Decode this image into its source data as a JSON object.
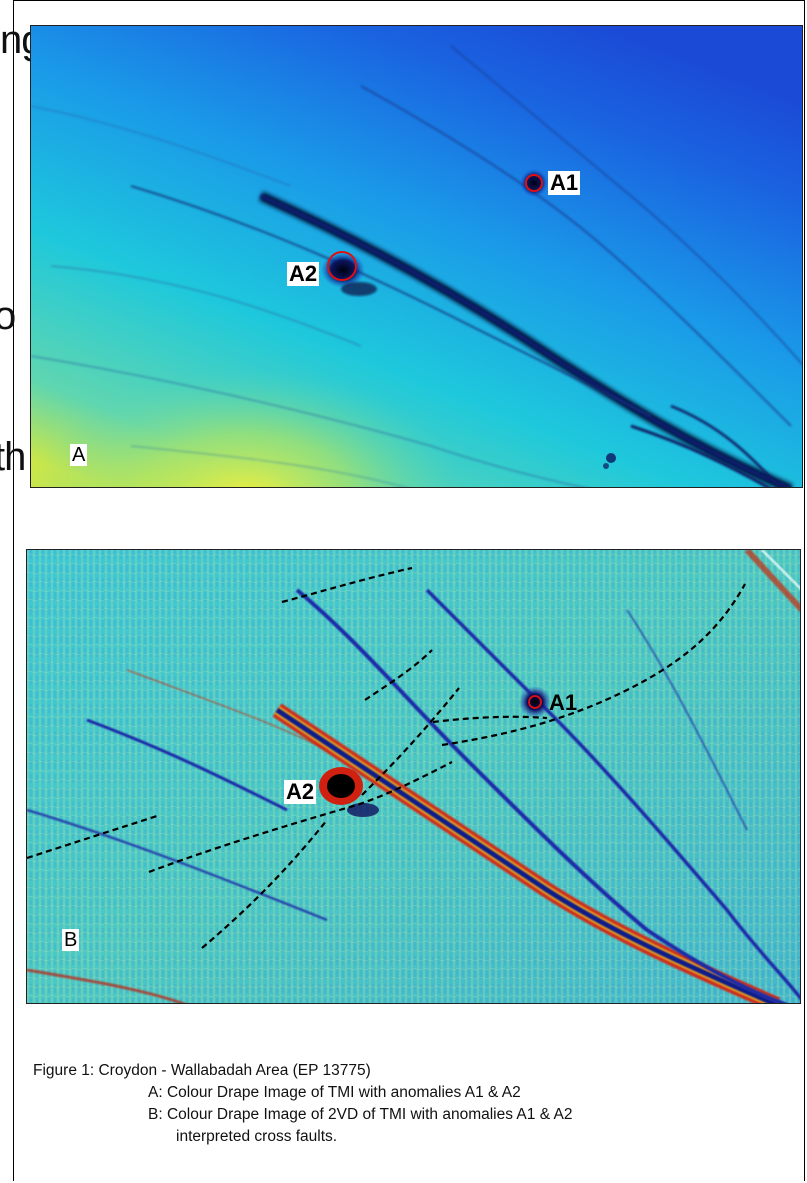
{
  "side_fragments": [
    "ng",
    "o",
    "th"
  ],
  "panel_a": {
    "letter": "A",
    "anomalies": [
      {
        "label": "A1"
      },
      {
        "label": "A2"
      }
    ]
  },
  "panel_b": {
    "letter": "B",
    "anomalies": [
      {
        "label": "A1"
      },
      {
        "label": "A2"
      }
    ]
  },
  "caption": {
    "line1": "Figure 1:  Croydon - Wallabadah Area (EP 13775)",
    "line2": "A:  Colour Drape Image of TMI with anomalies A1 & A2",
    "line3": "B:  Colour Drape Image of 2VD of TMI with anomalies A1 & A2",
    "line4": "interpreted cross faults."
  }
}
